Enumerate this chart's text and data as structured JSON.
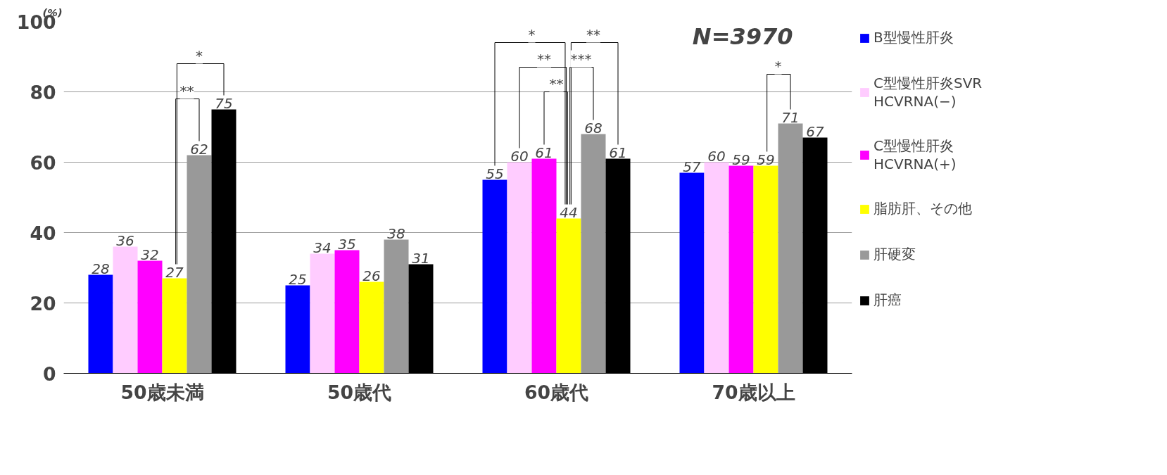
{
  "chart_data": {
    "type": "bar",
    "ylabel": "(%)",
    "categories": [
      "50歳未満",
      "50歳代",
      "60歳代",
      "70歳以上"
    ],
    "ylim": [
      0,
      100
    ],
    "yticks": [
      0,
      20,
      40,
      60,
      80,
      100
    ],
    "grid": "y",
    "legend": "right",
    "data_labels": true,
    "series": [
      {
        "name": "B型慢性肝炎",
        "color": "#0000ff",
        "values": [
          28,
          25,
          55,
          57
        ]
      },
      {
        "name": "C型慢性肝炎SVR\nHCVRNA(−)",
        "color": "#ffccff",
        "values": [
          36,
          34,
          60,
          60
        ]
      },
      {
        "name": "C型慢性肝炎\nHCVRNA(+)",
        "color": "#ff00ff",
        "values": [
          32,
          35,
          61,
          59
        ]
      },
      {
        "name": "脂肪肝、その他",
        "color": "#ffff00",
        "values": [
          27,
          26,
          44,
          59
        ]
      },
      {
        "name": "肝硬変",
        "color": "#999999",
        "values": [
          62,
          38,
          68,
          71
        ]
      },
      {
        "name": "肝癌",
        "color": "#000000",
        "values": [
          75,
          31,
          61,
          67
        ]
      }
    ],
    "annotations": [
      "N=3970",
      "*",
      "**",
      "*",
      "**",
      "**",
      "**",
      "***",
      "*"
    ]
  }
}
